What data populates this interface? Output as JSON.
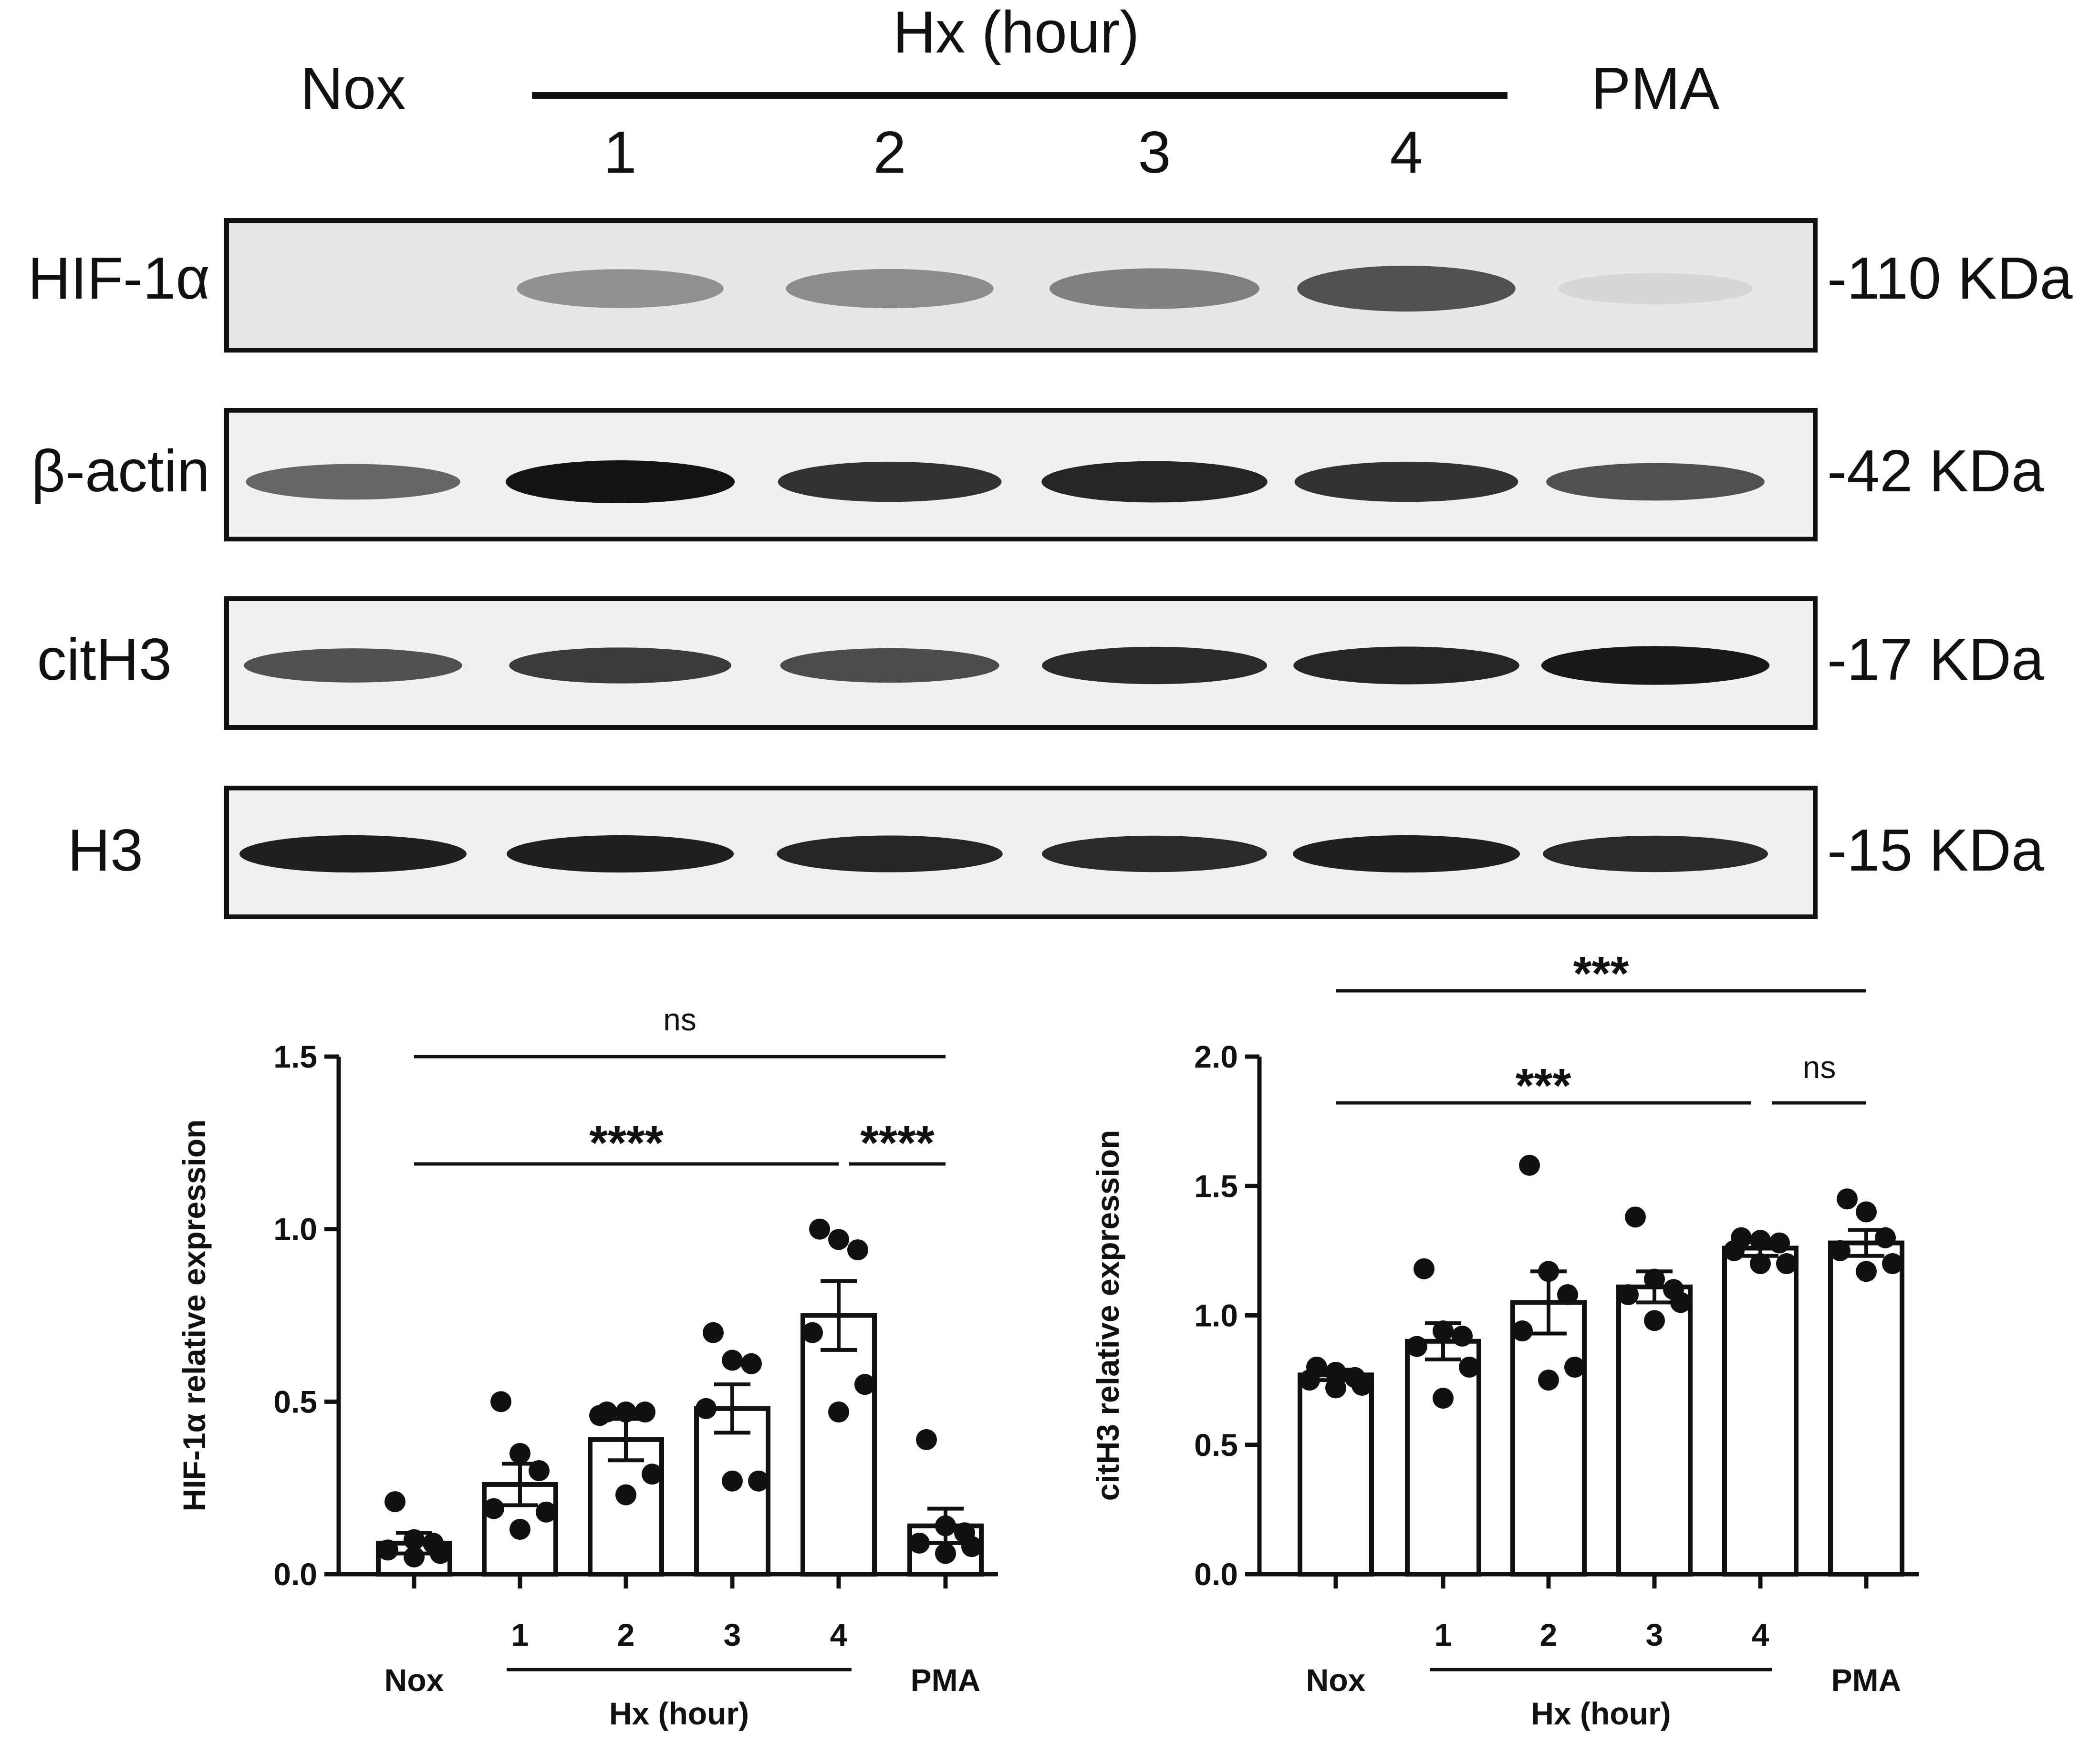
{
  "blot": {
    "header": {
      "nox": "Nox",
      "hx": "Hx (hour)",
      "hours": [
        "1",
        "2",
        "3",
        "4"
      ],
      "pma": "PMA"
    },
    "rows": [
      {
        "label": "HIF-1α",
        "weight": "-110 KDa",
        "intensity": [
          0.03,
          0.42,
          0.44,
          0.5,
          0.72,
          0.1
        ]
      },
      {
        "label": "β-actin",
        "weight": "-42 KDa",
        "intensity": [
          0.62,
          1.0,
          0.86,
          0.92,
          0.86,
          0.72
        ]
      },
      {
        "label": "citH3",
        "weight": "-17 KDa",
        "intensity": [
          0.72,
          0.82,
          0.74,
          0.9,
          0.92,
          0.98
        ]
      },
      {
        "label": "H3",
        "weight": "-15 KDa",
        "intensity": [
          0.95,
          0.95,
          0.92,
          0.9,
          0.95,
          0.9
        ]
      }
    ]
  },
  "chart_data": [
    {
      "type": "bar",
      "ylabel": "HIF-1α relative expression",
      "ylim": [
        0,
        1.5
      ],
      "yticks": [
        "0.0",
        "0.5",
        "1.0",
        "1.5"
      ],
      "categories": [
        "Nox",
        "1",
        "2",
        "3",
        "4",
        "PMA"
      ],
      "group_label": "Hx (hour)",
      "values": [
        0.09,
        0.26,
        0.39,
        0.48,
        0.75,
        0.14
      ],
      "sem": [
        0.03,
        0.06,
        0.06,
        0.07,
        0.1,
        0.05
      ],
      "points": [
        [
          0.21,
          0.1,
          0.09,
          0.07,
          0.06,
          0.05
        ],
        [
          0.5,
          0.35,
          0.3,
          0.19,
          0.18,
          0.13
        ],
        [
          0.47,
          0.47,
          0.47,
          0.46,
          0.29,
          0.23
        ],
        [
          0.7,
          0.62,
          0.61,
          0.48,
          0.27,
          0.27
        ],
        [
          1.0,
          0.97,
          0.94,
          0.7,
          0.55,
          0.47
        ],
        [
          0.39,
          0.14,
          0.12,
          0.09,
          0.08,
          0.06
        ]
      ],
      "significance": [
        {
          "label": "ns",
          "from": 0,
          "to": 5
        },
        {
          "label": "****",
          "from": 0,
          "to": 4
        },
        {
          "label": "****",
          "from": 4,
          "to": 5
        }
      ],
      "grid": false
    },
    {
      "type": "bar",
      "ylabel": "citH3 relative expression",
      "ylim": [
        0,
        2.0
      ],
      "yticks": [
        "0.0",
        "0.5",
        "1.0",
        "1.5",
        "2.0"
      ],
      "categories": [
        "Nox",
        "1",
        "2",
        "3",
        "4",
        "PMA"
      ],
      "group_label": "Hx (hour)",
      "values": [
        0.77,
        0.9,
        1.05,
        1.11,
        1.26,
        1.28
      ],
      "sem": [
        0.02,
        0.07,
        0.12,
        0.06,
        0.03,
        0.05
      ],
      "points": [
        [
          0.8,
          0.78,
          0.76,
          0.75,
          0.73,
          0.72
        ],
        [
          1.18,
          0.94,
          0.92,
          0.88,
          0.8,
          0.68
        ],
        [
          1.58,
          1.17,
          1.08,
          0.94,
          0.8,
          0.75
        ],
        [
          1.38,
          1.14,
          1.1,
          1.08,
          1.05,
          0.98
        ],
        [
          1.3,
          1.29,
          1.28,
          1.25,
          1.2,
          1.2
        ],
        [
          1.45,
          1.4,
          1.3,
          1.25,
          1.2,
          1.17
        ]
      ],
      "significance": [
        {
          "label": "***",
          "from": 0,
          "to": 5
        },
        {
          "label": "***",
          "from": 0,
          "to": 4
        },
        {
          "label": "ns",
          "from": 4,
          "to": 5
        }
      ],
      "grid": false
    }
  ]
}
